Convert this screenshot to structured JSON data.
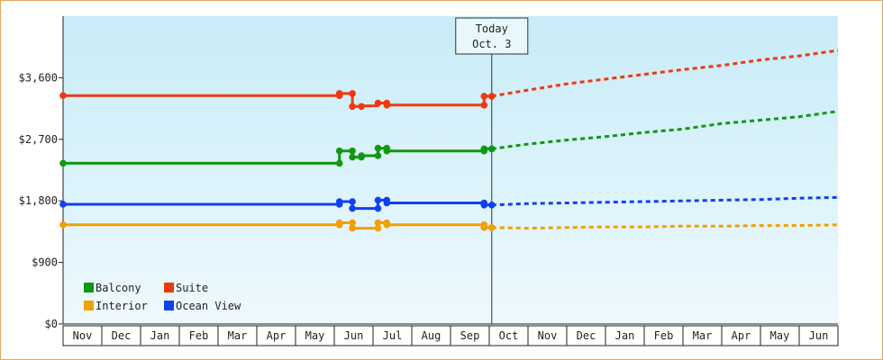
{
  "chart_data": {
    "type": "line",
    "title": "",
    "xlabel": "",
    "ylabel": "",
    "ylim": [
      0,
      4500
    ],
    "yticks": [
      0,
      900,
      1800,
      2700,
      3600
    ],
    "ytick_labels": [
      "$0",
      "$900",
      "$1,800",
      "$2,700",
      "$3,600"
    ],
    "x_range": [
      "2021-11-01",
      "2022-07-01"
    ],
    "month_labels": [
      "Nov",
      "Dec",
      "Jan",
      "Feb",
      "Mar",
      "Apr",
      "May",
      "Jun",
      "Jul",
      "Aug",
      "Sep",
      "Oct",
      "Nov",
      "Dec",
      "Jan",
      "Feb",
      "Mar",
      "Apr",
      "May",
      "Jun"
    ],
    "today": {
      "date": "2021-10-03",
      "label_line1": "Today",
      "label_line2": "Oct. 3"
    },
    "legend_position": "bottom-left",
    "background": [
      "#c8ecf8",
      "#eef9fd"
    ],
    "series": [
      {
        "name": "Balcony",
        "color": "#109810",
        "history": [
          [
            "2020-11-01",
            2350
          ],
          [
            "2021-06-05",
            2350
          ],
          [
            "2021-06-05",
            2530
          ],
          [
            "2021-06-15",
            2530
          ],
          [
            "2021-06-15",
            2440
          ],
          [
            "2021-06-22",
            2440
          ],
          [
            "2021-06-22",
            2460
          ],
          [
            "2021-07-05",
            2460
          ],
          [
            "2021-07-05",
            2570
          ],
          [
            "2021-07-12",
            2570
          ],
          [
            "2021-07-12",
            2530
          ],
          [
            "2021-09-27",
            2530
          ],
          [
            "2021-09-27",
            2560
          ],
          [
            "2021-10-03",
            2560
          ]
        ],
        "projection": [
          [
            "2021-10-03",
            2560
          ],
          [
            "2021-11-01",
            2630
          ],
          [
            "2021-12-01",
            2690
          ],
          [
            "2022-01-01",
            2740
          ],
          [
            "2022-02-01",
            2800
          ],
          [
            "2022-03-01",
            2850
          ],
          [
            "2022-04-01",
            2930
          ],
          [
            "2022-05-01",
            2980
          ],
          [
            "2022-06-01",
            3030
          ],
          [
            "2022-07-01",
            3110
          ]
        ]
      },
      {
        "name": "Suite",
        "color": "#f03810",
        "history": [
          [
            "2020-11-01",
            3340
          ],
          [
            "2021-06-05",
            3340
          ],
          [
            "2021-06-05",
            3370
          ],
          [
            "2021-06-15",
            3370
          ],
          [
            "2021-06-15",
            3180
          ],
          [
            "2021-06-22",
            3180
          ],
          [
            "2021-06-22",
            3190
          ],
          [
            "2021-07-05",
            3190
          ],
          [
            "2021-07-05",
            3230
          ],
          [
            "2021-07-12",
            3230
          ],
          [
            "2021-07-12",
            3200
          ],
          [
            "2021-09-27",
            3200
          ],
          [
            "2021-09-27",
            3330
          ],
          [
            "2021-10-03",
            3330
          ]
        ],
        "projection": [
          [
            "2021-10-03",
            3330
          ],
          [
            "2021-11-01",
            3420
          ],
          [
            "2021-12-01",
            3510
          ],
          [
            "2022-01-01",
            3580
          ],
          [
            "2022-02-01",
            3650
          ],
          [
            "2022-03-01",
            3720
          ],
          [
            "2022-04-01",
            3780
          ],
          [
            "2022-05-01",
            3860
          ],
          [
            "2022-06-01",
            3920
          ],
          [
            "2022-07-01",
            4000
          ]
        ]
      },
      {
        "name": "Interior",
        "color": "#f0a000",
        "history": [
          [
            "2020-11-01",
            1450
          ],
          [
            "2021-06-05",
            1450
          ],
          [
            "2021-06-05",
            1480
          ],
          [
            "2021-06-15",
            1480
          ],
          [
            "2021-06-15",
            1400
          ],
          [
            "2021-07-05",
            1400
          ],
          [
            "2021-07-05",
            1480
          ],
          [
            "2021-07-12",
            1480
          ],
          [
            "2021-07-12",
            1450
          ],
          [
            "2021-09-27",
            1450
          ],
          [
            "2021-09-27",
            1410
          ],
          [
            "2021-10-03",
            1410
          ]
        ],
        "projection": [
          [
            "2021-10-03",
            1410
          ],
          [
            "2021-11-01",
            1400
          ],
          [
            "2021-12-01",
            1410
          ],
          [
            "2022-01-01",
            1420
          ],
          [
            "2022-02-01",
            1420
          ],
          [
            "2022-03-01",
            1430
          ],
          [
            "2022-04-01",
            1430
          ],
          [
            "2022-05-01",
            1440
          ],
          [
            "2022-06-01",
            1440
          ],
          [
            "2022-07-01",
            1450
          ]
        ]
      },
      {
        "name": "Ocean View",
        "color": "#1040f0",
        "history": [
          [
            "2020-11-01",
            1750
          ],
          [
            "2021-06-05",
            1750
          ],
          [
            "2021-06-05",
            1790
          ],
          [
            "2021-06-15",
            1790
          ],
          [
            "2021-06-15",
            1690
          ],
          [
            "2021-07-05",
            1690
          ],
          [
            "2021-07-05",
            1810
          ],
          [
            "2021-07-12",
            1810
          ],
          [
            "2021-07-12",
            1770
          ],
          [
            "2021-09-27",
            1770
          ],
          [
            "2021-09-27",
            1740
          ],
          [
            "2021-10-03",
            1740
          ]
        ],
        "projection": [
          [
            "2021-10-03",
            1740
          ],
          [
            "2021-11-01",
            1760
          ],
          [
            "2021-12-01",
            1770
          ],
          [
            "2022-01-01",
            1780
          ],
          [
            "2022-02-01",
            1790
          ],
          [
            "2022-03-01",
            1800
          ],
          [
            "2022-04-01",
            1810
          ],
          [
            "2022-05-01",
            1820
          ],
          [
            "2022-06-01",
            1840
          ],
          [
            "2022-07-01",
            1850
          ]
        ]
      }
    ],
    "markers": {
      "Balcony": [
        [
          "2020-11-01",
          2350
        ],
        [
          "2021-06-05",
          2350
        ],
        [
          "2021-06-05",
          2530
        ],
        [
          "2021-06-15",
          2530
        ],
        [
          "2021-06-15",
          2440
        ],
        [
          "2021-06-22",
          2440
        ],
        [
          "2021-06-22",
          2460
        ],
        [
          "2021-07-05",
          2460
        ],
        [
          "2021-07-05",
          2570
        ],
        [
          "2021-07-12",
          2570
        ],
        [
          "2021-07-12",
          2530
        ],
        [
          "2021-09-27",
          2530
        ],
        [
          "2021-09-27",
          2560
        ],
        [
          "2021-10-03",
          2560
        ]
      ],
      "Suite": [
        [
          "2020-11-01",
          3340
        ],
        [
          "2021-06-05",
          3340
        ],
        [
          "2021-06-05",
          3370
        ],
        [
          "2021-06-15",
          3370
        ],
        [
          "2021-06-15",
          3180
        ],
        [
          "2021-06-22",
          3180
        ],
        [
          "2021-07-05",
          3230
        ],
        [
          "2021-07-12",
          3230
        ],
        [
          "2021-07-12",
          3200
        ],
        [
          "2021-09-27",
          3200
        ],
        [
          "2021-09-27",
          3330
        ],
        [
          "2021-10-03",
          3330
        ]
      ],
      "Interior": [
        [
          "2020-11-01",
          1450
        ],
        [
          "2021-06-05",
          1450
        ],
        [
          "2021-06-05",
          1480
        ],
        [
          "2021-06-15",
          1480
        ],
        [
          "2021-06-15",
          1400
        ],
        [
          "2021-07-05",
          1400
        ],
        [
          "2021-07-05",
          1480
        ],
        [
          "2021-07-12",
          1480
        ],
        [
          "2021-07-12",
          1450
        ],
        [
          "2021-09-27",
          1450
        ],
        [
          "2021-09-27",
          1410
        ],
        [
          "2021-10-03",
          1410
        ]
      ],
      "Ocean View": [
        [
          "2020-11-01",
          1750
        ],
        [
          "2021-06-05",
          1750
        ],
        [
          "2021-06-05",
          1790
        ],
        [
          "2021-06-15",
          1790
        ],
        [
          "2021-06-15",
          1690
        ],
        [
          "2021-07-05",
          1690
        ],
        [
          "2021-07-05",
          1810
        ],
        [
          "2021-07-12",
          1810
        ],
        [
          "2021-07-12",
          1770
        ],
        [
          "2021-09-27",
          1770
        ],
        [
          "2021-09-27",
          1740
        ],
        [
          "2021-10-03",
          1740
        ]
      ]
    }
  }
}
